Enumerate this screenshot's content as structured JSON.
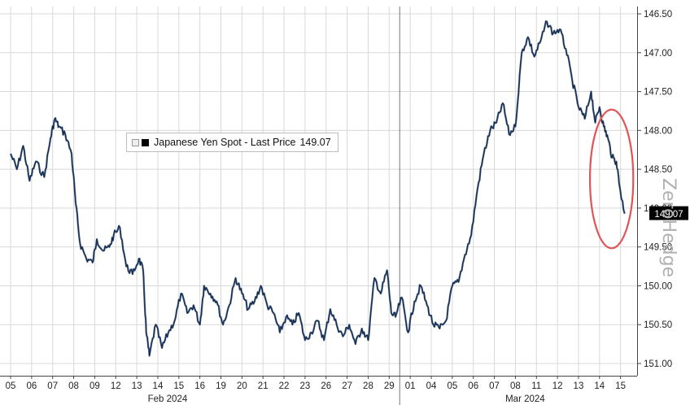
{
  "chart_data": {
    "type": "line",
    "legend": {
      "series_label": "Japanese Yen Spot - Last Price",
      "last_value": "149.07",
      "position": "top-left"
    },
    "y_axis": {
      "side": "right",
      "inverted": true,
      "ylim": [
        146.5,
        151.0
      ],
      "ticks": [
        "146.50",
        "147.00",
        "147.50",
        "148.00",
        "148.50",
        "149.00",
        "149.50",
        "150.00",
        "150.50",
        "151.00"
      ]
    },
    "x_axis": {
      "day_ticks": [
        "05",
        "06",
        "07",
        "08",
        "09",
        "12",
        "13",
        "14",
        "15",
        "16",
        "19",
        "20",
        "21",
        "22",
        "23",
        "26",
        "27",
        "28",
        "29",
        "01",
        "04",
        "05",
        "06",
        "07",
        "08",
        "11",
        "12",
        "13",
        "14",
        "15"
      ],
      "month_labels": [
        {
          "label": "Feb 2024",
          "tick_index": 7
        },
        {
          "label": "Mar 2024",
          "tick_index": 24
        }
      ],
      "month_separator_after_index": 18
    },
    "grid": true,
    "last_price_tag": "149.07",
    "watermark": "ZeroHedge",
    "highlight": {
      "shape": "ellipse",
      "color": "#e05555",
      "around": "last two sessions"
    },
    "series": [
      {
        "name": "Japanese Yen Spot - Last Price",
        "color": "#3c5a86",
        "x": [
          0,
          0.3,
          0.6,
          0.9,
          1.2,
          1.6,
          1.9,
          2.1,
          2.3,
          2.6,
          2.9,
          3.1,
          3.3,
          3.6,
          3.9,
          4.1,
          4.4,
          4.7,
          4.9,
          5.2,
          5.5,
          5.8,
          6.1,
          6.3,
          6.45,
          6.6,
          6.9,
          7.2,
          7.5,
          7.8,
          8.1,
          8.4,
          8.7,
          9.0,
          9.2,
          9.5,
          9.8,
          10.1,
          10.4,
          10.7,
          11.0,
          11.3,
          11.6,
          11.9,
          12.2,
          12.5,
          12.8,
          13.1,
          13.4,
          13.7,
          14.0,
          14.3,
          14.6,
          14.9,
          15.2,
          15.5,
          15.8,
          16.1,
          16.4,
          16.7,
          17.0,
          17.3,
          17.6,
          17.9,
          18.1,
          18.3,
          18.6,
          18.9,
          19.2,
          19.5,
          19.8,
          20.1,
          20.4,
          20.7,
          21.0,
          21.3,
          21.6,
          21.9,
          22.2,
          22.5,
          22.8,
          23.1,
          23.4,
          23.7,
          24.0,
          24.3,
          24.6,
          24.9,
          25.2,
          25.5,
          25.8,
          26.1,
          26.4,
          26.7,
          27.0,
          27.3,
          27.6,
          27.8,
          28.0,
          28.2,
          28.4,
          28.6,
          28.8,
          29.0,
          29.2
        ],
        "y": [
          148.3,
          148.5,
          148.2,
          148.65,
          148.4,
          148.6,
          148.1,
          147.85,
          147.95,
          148.05,
          148.3,
          148.95,
          149.45,
          149.65,
          149.7,
          149.4,
          149.55,
          149.5,
          149.35,
          149.25,
          149.75,
          149.85,
          149.65,
          149.8,
          150.6,
          150.9,
          150.5,
          150.8,
          150.6,
          150.45,
          150.1,
          150.35,
          150.25,
          150.5,
          150.0,
          150.1,
          150.2,
          150.5,
          150.25,
          149.9,
          150.1,
          150.3,
          150.2,
          150.0,
          150.25,
          150.35,
          150.6,
          150.4,
          150.5,
          150.35,
          150.7,
          150.6,
          150.45,
          150.7,
          150.3,
          150.5,
          150.65,
          150.5,
          150.75,
          150.55,
          150.7,
          149.9,
          150.1,
          149.8,
          150.35,
          150.4,
          150.15,
          150.6,
          150.2,
          150.0,
          150.25,
          150.5,
          150.55,
          150.45,
          150.0,
          149.95,
          149.6,
          149.35,
          148.75,
          148.3,
          148.0,
          147.9,
          147.65,
          148.05,
          147.95,
          147.0,
          146.8,
          147.05,
          146.85,
          146.6,
          146.75,
          146.7,
          146.95,
          147.35,
          147.7,
          147.85,
          147.5,
          147.9,
          147.7,
          147.95,
          148.1,
          148.35,
          148.4,
          148.8,
          149.07
        ]
      }
    ]
  }
}
